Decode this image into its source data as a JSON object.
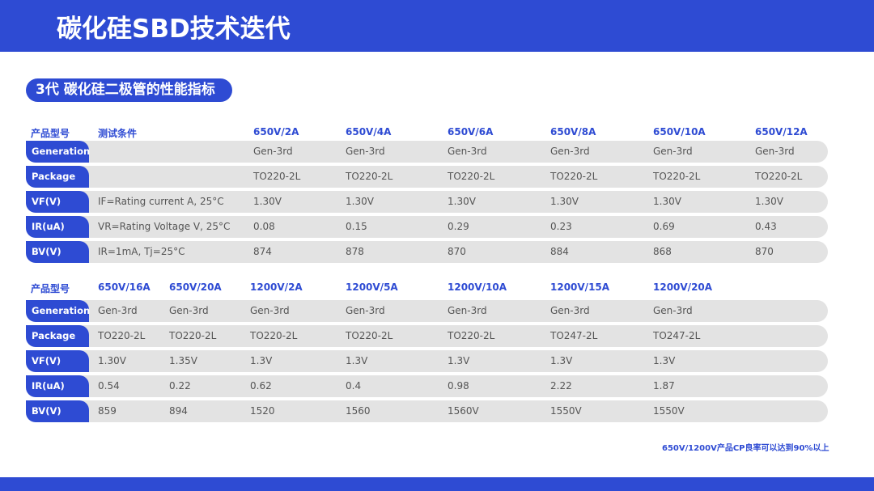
{
  "title": "碳化硅SBD技术迭代",
  "section": "3代 碳化硅二极管的性能指标",
  "colors": {
    "accent": "#2e4bd3",
    "row_bg": "#e3e3e3"
  },
  "table1": {
    "headers": [
      "产品型号",
      "测试条件",
      "650V/2A",
      "650V/4A",
      "650V/6A",
      "650V/8A",
      "650V/10A",
      "650V/12A"
    ],
    "rows": [
      {
        "label": "Generation",
        "cells": [
          "",
          "Gen-3rd",
          "Gen-3rd",
          "Gen-3rd",
          "Gen-3rd",
          "Gen-3rd",
          "Gen-3rd"
        ]
      },
      {
        "label": "Package",
        "cells": [
          "",
          "TO220-2L",
          "TO220-2L",
          "TO220-2L",
          "TO220-2L",
          "TO220-2L",
          "TO220-2L"
        ]
      },
      {
        "label": "VF(V)",
        "cells": [
          "IF=Rating current A, 25°C",
          "1.30V",
          "1.30V",
          "1.30V",
          "1.30V",
          "1.30V",
          "1.30V"
        ]
      },
      {
        "label": "IR(uA)",
        "cells": [
          "VR=Rating Voltage V, 25°C",
          "0.08",
          "0.15",
          "0.29",
          "0.23",
          "0.69",
          "0.43"
        ]
      },
      {
        "label": "BV(V)",
        "cells": [
          "IR=1mA, Tj=25°C",
          "874",
          "878",
          "870",
          "884",
          "868",
          "870"
        ]
      }
    ]
  },
  "table2": {
    "headers": [
      "产品型号",
      "650V/16A",
      "650V/20A",
      "1200V/2A",
      "1200V/5A",
      "1200V/10A",
      "1200V/15A",
      "1200V/20A"
    ],
    "rows": [
      {
        "label": "Generation",
        "cells": [
          "Gen-3rd",
          "Gen-3rd",
          "Gen-3rd",
          "Gen-3rd",
          "Gen-3rd",
          "Gen-3rd",
          "Gen-3rd"
        ]
      },
      {
        "label": "Package",
        "cells": [
          "TO220-2L",
          "TO220-2L",
          "TO220-2L",
          "TO220-2L",
          "TO220-2L",
          "TO247-2L",
          "TO247-2L"
        ]
      },
      {
        "label": "VF(V)",
        "cells": [
          "1.30V",
          "1.35V",
          "1.3V",
          "1.3V",
          "1.3V",
          "1.3V",
          "1.3V"
        ]
      },
      {
        "label": "IR(uA)",
        "cells": [
          "0.54",
          "0.22",
          "0.62",
          "0.4",
          "0.98",
          "2.22",
          "1.87"
        ]
      },
      {
        "label": "BV(V)",
        "cells": [
          "859",
          "894",
          "1520",
          "1560",
          "1560V",
          "1550V",
          "1550V"
        ]
      }
    ]
  },
  "note": "650V/1200V产品CP良率可以达到90%以上"
}
